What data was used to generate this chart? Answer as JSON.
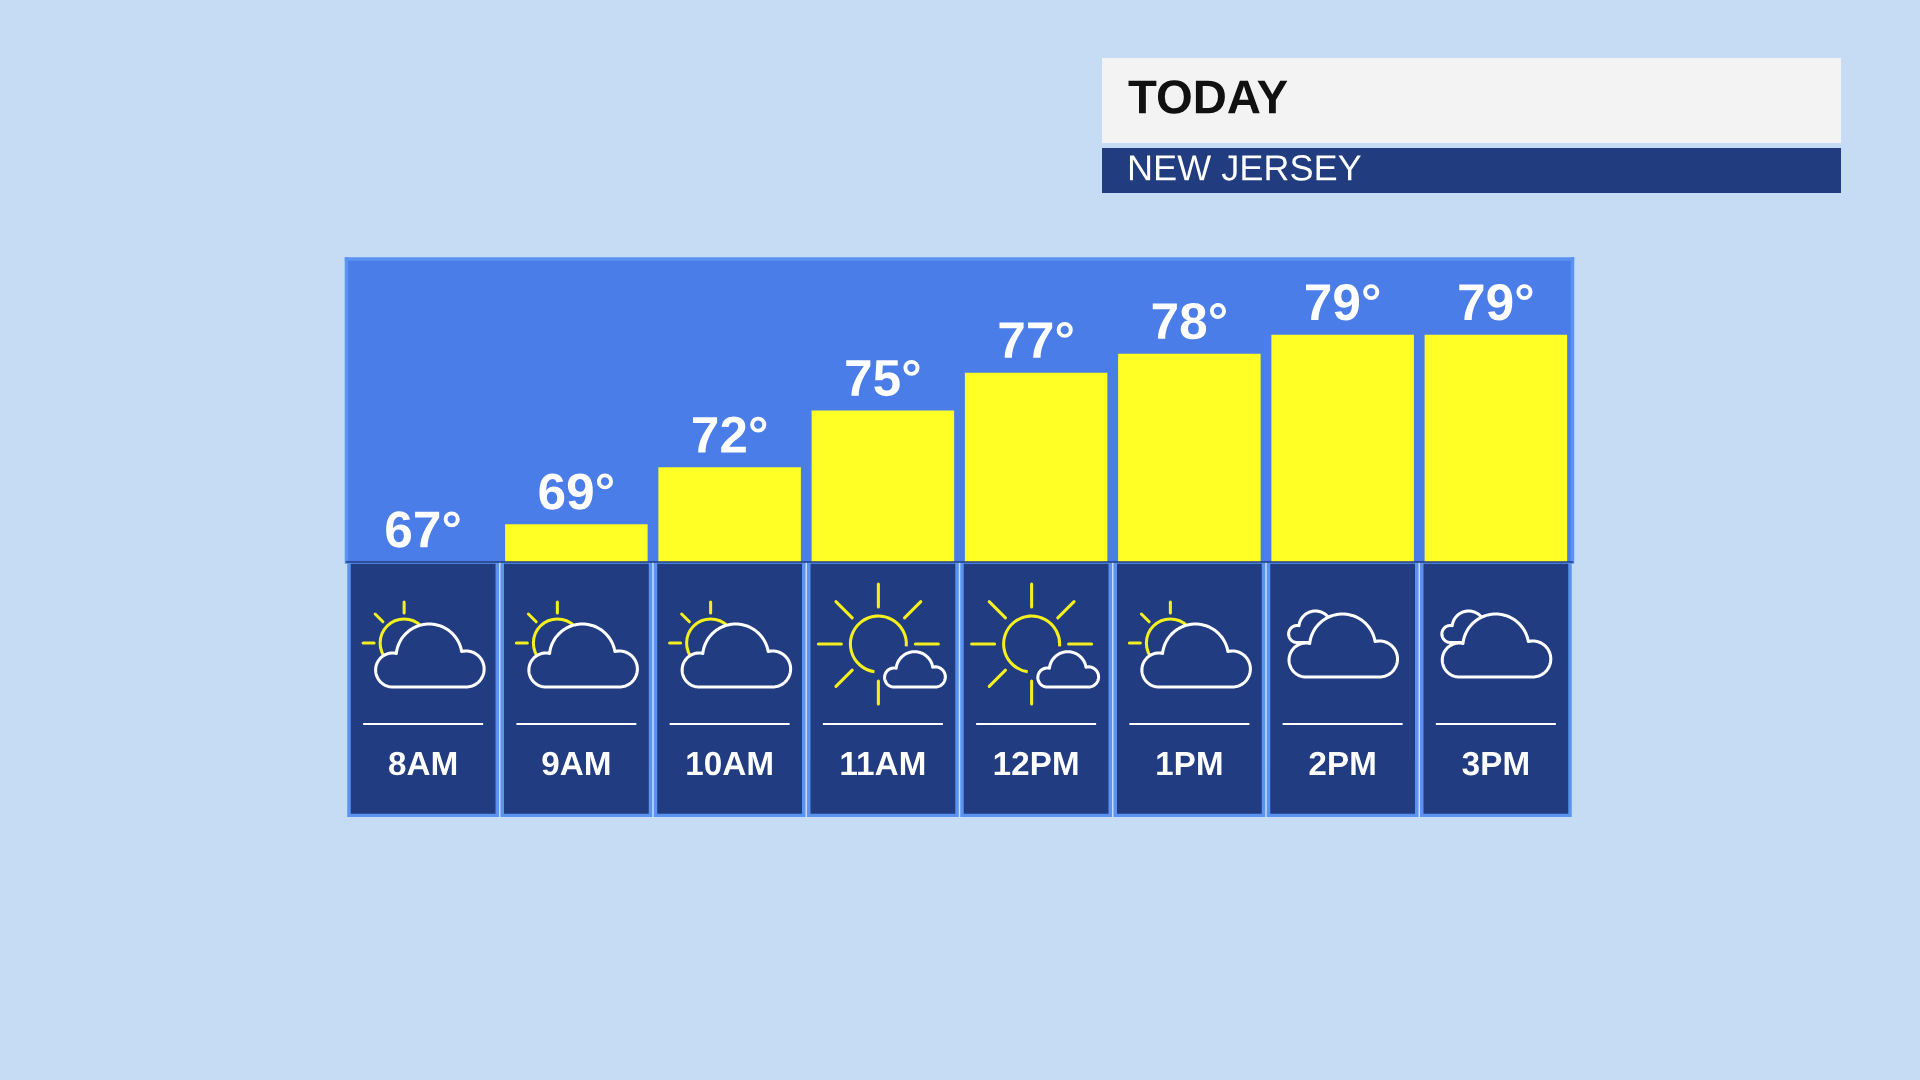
{
  "chart_data": {
    "type": "bar",
    "title": "TODAY",
    "subtitle": "NEW JERSEY",
    "categories": [
      "8AM",
      "9AM",
      "10AM",
      "11AM",
      "12PM",
      "1PM",
      "2PM",
      "3PM"
    ],
    "values": [
      67,
      69,
      72,
      75,
      77,
      78,
      79,
      79
    ],
    "value_labels": [
      "67°",
      "69°",
      "72°",
      "75°",
      "77°",
      "78°",
      "79°",
      "79°"
    ],
    "color": "#ffff26",
    "ylim": [
      67,
      83
    ],
    "tick_labels": "x",
    "grid": false
  }
}
